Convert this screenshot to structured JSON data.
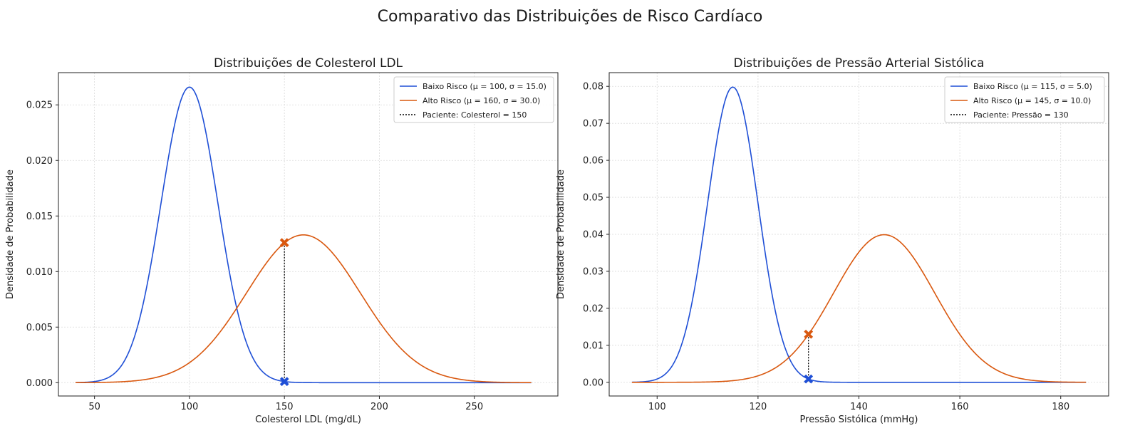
{
  "figure_title": "Comparativo das Distribuições de Risco Cardíaco",
  "colors": {
    "low": "#1f4fd6",
    "high": "#d9580f",
    "patient": "#000000",
    "grid": "#d9d9d9"
  },
  "chart_data": [
    {
      "type": "line",
      "title": "Distribuições de Colesterol LDL",
      "xlabel": "Colesterol LDL (mg/dL)",
      "ylabel": "Densidade de Probabilidade",
      "xlim": [
        31,
        294
      ],
      "ylim": [
        -0.0012,
        0.0279
      ],
      "x_domain": [
        40,
        280
      ],
      "xticks": [
        50,
        100,
        150,
        200,
        250
      ],
      "yticks": [
        0.0,
        0.005,
        0.01,
        0.015,
        0.02,
        0.025
      ],
      "ytick_decimals": 3,
      "grid": true,
      "legend_position": "top-right",
      "series": [
        {
          "name": "Baixo Risco (μ = 100, σ = 15.0)",
          "mu": 100,
          "sigma": 15.0,
          "color": "#1f4fd6"
        },
        {
          "name": "Alto Risco (μ = 160, σ = 30.0)",
          "mu": 160,
          "sigma": 30.0,
          "color": "#d9580f"
        }
      ],
      "patient": {
        "label": "Paciente: Colesterol = 150",
        "x": 150,
        "y_low": 0.0001,
        "y_high": 0.0126
      }
    },
    {
      "type": "line",
      "title": "Distribuições de Pressão Arterial Sistólica",
      "xlabel": "Pressão Sistólica (mmHg)",
      "ylabel": "Densidade de Probabilidade",
      "xlim": [
        90.5,
        189.5
      ],
      "ylim": [
        -0.0037,
        0.0837
      ],
      "x_domain": [
        95,
        185
      ],
      "xticks": [
        100,
        120,
        140,
        160,
        180
      ],
      "yticks": [
        0.0,
        0.01,
        0.02,
        0.03,
        0.04,
        0.05,
        0.06,
        0.07,
        0.08
      ],
      "ytick_decimals": 2,
      "grid": true,
      "legend_position": "top-right",
      "series": [
        {
          "name": "Baixo Risco (μ = 115, σ = 5.0)",
          "mu": 115,
          "sigma": 5.0,
          "color": "#1f4fd6"
        },
        {
          "name": "Alto Risco (μ = 145, σ = 10.0)",
          "mu": 145,
          "sigma": 10.0,
          "color": "#d9580f"
        }
      ],
      "patient": {
        "label": "Paciente: Pressão = 130",
        "x": 130,
        "y_low": 0.0009,
        "y_high": 0.013
      }
    }
  ]
}
